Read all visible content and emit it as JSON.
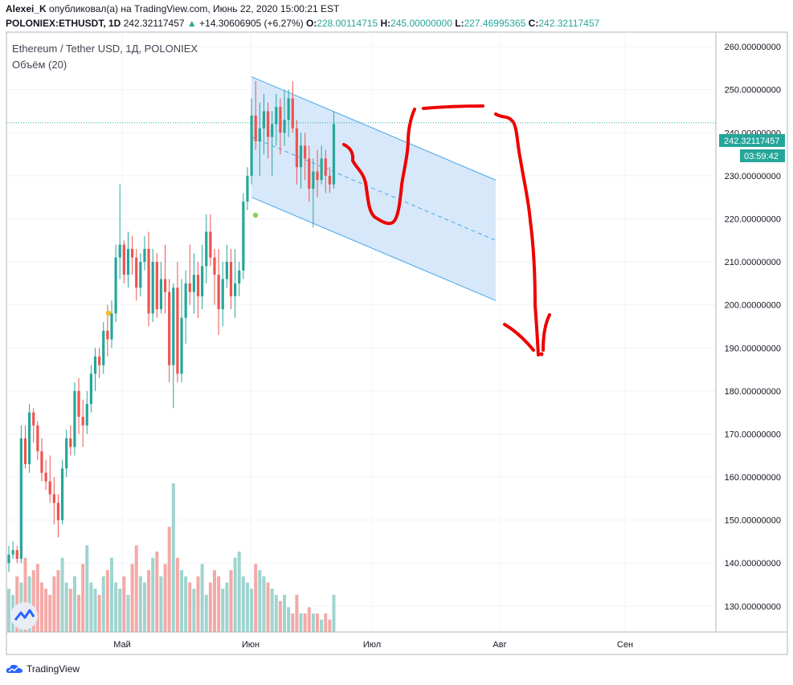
{
  "header": {
    "author": "Alexei_K",
    "published_text": "опубликовал(а) на TradingView.com, Июнь 22, 2020 15:00:21 EST",
    "symbol": "POLONIEX:ETHUSDT, 1D",
    "last": "242.32117457",
    "change": "+14.30606905 (+6.27%)",
    "o_label": "O:",
    "o_val": "228.00114715",
    "h_label": "H:",
    "h_val": "245.00000000",
    "l_label": "L:",
    "l_val": "227.46995365",
    "c_label": "C:",
    "c_val": "242.32117457"
  },
  "legend": {
    "title": "Ethereum / Tether USD, 1Д, POLONIEX",
    "volume": "Объём (20)"
  },
  "price_tag": {
    "price": "242.32117457",
    "timer": "03:59:42"
  },
  "footer": {
    "brand": "TradingView"
  },
  "colors": {
    "up": "#26a69a",
    "down": "#ef5350",
    "vol_up": "#9fd4cf",
    "vol_down": "#f4a9a7",
    "channel_fill": "#cfe4f9",
    "channel_line": "#4aa8e8",
    "drawing": "#ee0000",
    "grid": "#f0f3fa"
  },
  "chart_data": {
    "type": "candlestick",
    "title": "Ethereum / Tether USD, 1Д, POLONIEX",
    "y_axis": {
      "min": 124,
      "max": 263,
      "ticks": [
        130,
        140,
        150,
        160,
        170,
        180,
        190,
        200,
        210,
        220,
        230,
        240,
        250,
        260
      ],
      "tick_format": "8 decimals"
    },
    "x_axis": {
      "labels": [
        "Май",
        "Июн",
        "Июл",
        "Авг",
        "Сен"
      ]
    },
    "candles_ohlc": [
      [
        140,
        144,
        138,
        142
      ],
      [
        142,
        145,
        141,
        143
      ],
      [
        143,
        144,
        140,
        141
      ],
      [
        141,
        172,
        140,
        169
      ],
      [
        169,
        172,
        162,
        163
      ],
      [
        163,
        177,
        161,
        175
      ],
      [
        175,
        176,
        168,
        172
      ],
      [
        172,
        173,
        164,
        166
      ],
      [
        166,
        169,
        159,
        161
      ],
      [
        161,
        164,
        157,
        159
      ],
      [
        159,
        165,
        154,
        156
      ],
      [
        156,
        160,
        149,
        154
      ],
      [
        154,
        156,
        146,
        150
      ],
      [
        150,
        164,
        149,
        162
      ],
      [
        162,
        171,
        160,
        169
      ],
      [
        169,
        172,
        165,
        167
      ],
      [
        167,
        182,
        165,
        180
      ],
      [
        180,
        183,
        170,
        174
      ],
      [
        174,
        178,
        167,
        172
      ],
      [
        172,
        180,
        170,
        177
      ],
      [
        177,
        186,
        175,
        184
      ],
      [
        184,
        190,
        180,
        188
      ],
      [
        188,
        190,
        183,
        186
      ],
      [
        186,
        196,
        184,
        194
      ],
      [
        194,
        200,
        188,
        192
      ],
      [
        192,
        201,
        190,
        198
      ],
      [
        198,
        214,
        196,
        211
      ],
      [
        211,
        228,
        206,
        214
      ],
      [
        214,
        215,
        205,
        207
      ],
      [
        207,
        217,
        204,
        213
      ],
      [
        213,
        216,
        207,
        211
      ],
      [
        211,
        213,
        201,
        204
      ],
      [
        204,
        212,
        202,
        210
      ],
      [
        210,
        216,
        208,
        213
      ],
      [
        213,
        217,
        195,
        198
      ],
      [
        198,
        213,
        196,
        210
      ],
      [
        210,
        212,
        197,
        199
      ],
      [
        199,
        210,
        198,
        206
      ],
      [
        206,
        214,
        198,
        203
      ],
      [
        203,
        206,
        182,
        186
      ],
      [
        186,
        205,
        176,
        204
      ],
      [
        204,
        210,
        182,
        184
      ],
      [
        184,
        206,
        182,
        197
      ],
      [
        197,
        208,
        191,
        205
      ],
      [
        205,
        214,
        200,
        203
      ],
      [
        203,
        212,
        198,
        207
      ],
      [
        207,
        210,
        197,
        202
      ],
      [
        202,
        214,
        199,
        209
      ],
      [
        209,
        221,
        205,
        217
      ],
      [
        217,
        221,
        209,
        211
      ],
      [
        211,
        213,
        200,
        207
      ],
      [
        207,
        213,
        193,
        199
      ],
      [
        199,
        210,
        195,
        206
      ],
      [
        206,
        214,
        204,
        210
      ],
      [
        210,
        213,
        199,
        202
      ],
      [
        202,
        213,
        197,
        205
      ],
      [
        205,
        210,
        202,
        208
      ],
      [
        208,
        226,
        206,
        224
      ],
      [
        224,
        232,
        222,
        230
      ],
      [
        230,
        248,
        228,
        244
      ],
      [
        244,
        252,
        236,
        238
      ],
      [
        238,
        247,
        230,
        241
      ],
      [
        241,
        249,
        235,
        245
      ],
      [
        245,
        247,
        234,
        239
      ],
      [
        239,
        245,
        230,
        242
      ],
      [
        242,
        249,
        237,
        246
      ],
      [
        246,
        248,
        235,
        240
      ],
      [
        240,
        250,
        237,
        243
      ],
      [
        243,
        250,
        239,
        248
      ],
      [
        248,
        252,
        240,
        241
      ],
      [
        241,
        243,
        228,
        232
      ],
      [
        232,
        240,
        227,
        237
      ],
      [
        237,
        240,
        229,
        234
      ],
      [
        234,
        237,
        224,
        227
      ],
      [
        227,
        234,
        218,
        231
      ],
      [
        231,
        236,
        225,
        229
      ],
      [
        229,
        237,
        228,
        234
      ],
      [
        234,
        236,
        226,
        230
      ],
      [
        230,
        232,
        226,
        228
      ],
      [
        228,
        245,
        227,
        242
      ]
    ],
    "volume": [
      7,
      6,
      9,
      8,
      12,
      9,
      10,
      11,
      8,
      7,
      6,
      9,
      10,
      12,
      8,
      7,
      9,
      6,
      11,
      14,
      8,
      7,
      6,
      9,
      10,
      12,
      8,
      7,
      9,
      6,
      11,
      14,
      9,
      8,
      10,
      12,
      13,
      9,
      11,
      17,
      24,
      12,
      10,
      9,
      8,
      7,
      9,
      11,
      6,
      8,
      10,
      9,
      7,
      8,
      10,
      12,
      13,
      9,
      8,
      7,
      11,
      10,
      9,
      8,
      7,
      6,
      5,
      6,
      4,
      3,
      6,
      3,
      3,
      4,
      3,
      3,
      2,
      3,
      2,
      6
    ],
    "channel": {
      "upper_start": 253,
      "upper_end": 229,
      "lower_start": 225,
      "lower_end": 201,
      "mid_end": 215
    },
    "last_price": 242.32117457
  }
}
